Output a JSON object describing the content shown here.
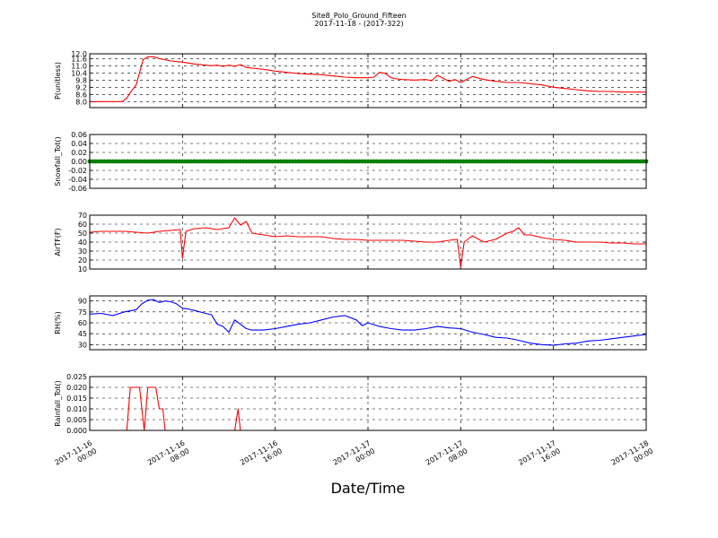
{
  "figure": {
    "title_line1": "Site8_Polo_Ground_Fifteen",
    "title_line2": "2017-11-18 - (2017-322)",
    "xlabel": "Date/Time",
    "x_ticks": [
      {
        "t": 0,
        "line1": "2017-11-16",
        "line2": "00:00"
      },
      {
        "t": 8,
        "line1": "2017-11-16",
        "line2": "08:00"
      },
      {
        "t": 16,
        "line1": "2017-11-16",
        "line2": "16:00"
      },
      {
        "t": 24,
        "line1": "2017-11-17",
        "line2": "00:00"
      },
      {
        "t": 32,
        "line1": "2017-11-17",
        "line2": "08:00"
      },
      {
        "t": 40,
        "line1": "2017-11-17",
        "line2": "16:00"
      },
      {
        "t": 48,
        "line1": "2017-11-18",
        "line2": "00:00"
      }
    ],
    "x_range_hours": [
      0,
      48
    ]
  },
  "chart_data": [
    {
      "type": "line",
      "ylabel": "P(unitless)",
      "ylim": [
        7.5,
        12.0
      ],
      "yticks": [
        "8.0",
        "8.6",
        "9.2",
        "9.8",
        "10.4",
        "11.0",
        "11.6",
        "12.0"
      ],
      "ytick_values": [
        8.0,
        8.6,
        9.2,
        9.8,
        10.4,
        11.0,
        11.6,
        12.0
      ],
      "grid": true,
      "color": "#ff0000",
      "x": [
        0,
        1,
        2,
        2.8,
        3.2,
        3.6,
        4.0,
        4.6,
        5.0,
        5.5,
        6,
        7,
        8,
        9,
        10,
        10.5,
        11,
        11.5,
        12,
        12.5,
        13,
        13.5,
        14,
        15,
        16,
        17,
        18,
        19,
        20,
        21,
        22,
        23,
        24,
        24.5,
        25,
        25.5,
        26,
        26.5,
        27,
        28,
        29,
        29.5,
        30,
        31,
        31.5,
        32,
        32.5,
        33,
        34,
        35,
        36,
        37,
        38,
        39,
        40,
        41,
        42,
        42.5,
        43,
        44,
        45,
        46,
        47,
        48
      ],
      "y": [
        8.0,
        8.0,
        8.0,
        8.0,
        8.3,
        8.9,
        9.4,
        11.5,
        11.75,
        11.75,
        11.6,
        11.4,
        11.3,
        11.15,
        11.05,
        11.0,
        11.05,
        10.95,
        11.05,
        10.95,
        11.1,
        10.85,
        10.8,
        10.7,
        10.55,
        10.45,
        10.35,
        10.3,
        10.25,
        10.15,
        10.05,
        10.0,
        10.0,
        10.05,
        10.45,
        10.35,
        10.0,
        9.9,
        9.85,
        9.8,
        9.85,
        9.75,
        10.2,
        9.7,
        9.85,
        9.6,
        9.85,
        10.1,
        9.85,
        9.7,
        9.6,
        9.6,
        9.5,
        9.4,
        9.2,
        9.1,
        9.0,
        8.95,
        8.9,
        8.85,
        8.85,
        8.8,
        8.8,
        8.8
      ]
    },
    {
      "type": "scatter",
      "ylabel": "Snowfall_Tot()",
      "ylim": [
        -0.06,
        0.06
      ],
      "yticks": [
        "0.06",
        "0.04",
        "0.02",
        "0.00",
        "-0.02",
        "-0.04",
        "-0.06"
      ],
      "ytick_values": [
        0.06,
        0.04,
        0.02,
        0.0,
        -0.02,
        -0.04,
        -0.06
      ],
      "grid": true,
      "color": "#008000",
      "constant_value": 0.0,
      "x_step_hours": 0.25
    },
    {
      "type": "line",
      "ylabel": "AirTF(F)",
      "ylim": [
        10,
        70
      ],
      "yticks": [
        "70",
        "60",
        "50",
        "40",
        "30",
        "20",
        "10"
      ],
      "ytick_values": [
        70,
        60,
        50,
        40,
        30,
        20,
        10
      ],
      "grid": true,
      "color": "#ff0000",
      "x": [
        0,
        1,
        2,
        3,
        4,
        5,
        6,
        7,
        7.8,
        8.0,
        8.3,
        9,
        10,
        11,
        12,
        12.5,
        13,
        13.5,
        14,
        15,
        16,
        17,
        18,
        19,
        20,
        21,
        22,
        23,
        24,
        25,
        26,
        27,
        28,
        29,
        30,
        31,
        31.7,
        32.0,
        32.3,
        33,
        34,
        35,
        36,
        36.5,
        37,
        37.5,
        38,
        39,
        40,
        41,
        42,
        43,
        44,
        45,
        46,
        47,
        48
      ],
      "y": [
        51,
        52,
        52,
        52,
        51,
        50,
        52,
        53,
        54,
        22,
        52,
        55,
        56,
        54,
        56,
        67,
        59,
        63,
        50,
        48,
        46,
        47,
        46,
        46,
        46,
        44,
        43,
        43,
        42,
        42,
        42,
        42,
        41,
        40,
        40,
        42,
        43,
        12,
        40,
        47,
        40,
        43,
        50,
        52,
        56,
        48,
        48,
        45,
        43,
        42,
        40,
        40,
        40,
        39,
        39,
        38,
        38
      ]
    },
    {
      "type": "line",
      "ylabel": "RH(%)",
      "ylim": [
        23,
        97
      ],
      "yticks": [
        "90",
        "75",
        "60",
        "45",
        "30"
      ],
      "ytick_values": [
        90,
        75,
        60,
        45,
        30
      ],
      "grid": true,
      "color": "#0000ff",
      "x": [
        0,
        1,
        2,
        3,
        4,
        4.5,
        5,
        5.5,
        6,
        6.5,
        7,
        7.5,
        8,
        8.5,
        9,
        10,
        10.5,
        11,
        11.5,
        12,
        12.5,
        13,
        13.5,
        14,
        15,
        16,
        17,
        18,
        19,
        20,
        21,
        22,
        23,
        23.5,
        24,
        25,
        26,
        27,
        28,
        29,
        30,
        31,
        32,
        33,
        34,
        35,
        36,
        37,
        38,
        39,
        40,
        41,
        42,
        43,
        44,
        45,
        46,
        47,
        48
      ],
      "y": [
        72,
        73,
        70,
        75,
        78,
        86,
        91,
        92,
        88,
        90,
        89,
        86,
        80,
        79,
        77,
        73,
        71,
        58,
        55,
        47,
        64,
        58,
        52,
        50,
        50,
        52,
        55,
        58,
        60,
        64,
        68,
        70,
        64,
        56,
        60,
        55,
        52,
        50,
        50,
        52,
        55,
        53,
        52,
        47,
        44,
        40,
        39,
        36,
        32,
        30,
        29,
        31,
        32,
        35,
        36,
        38,
        40,
        42,
        44
      ]
    },
    {
      "type": "line",
      "ylabel": "Rainfall_Tot()",
      "ylim": [
        0,
        0.025
      ],
      "yticks": [
        "0.025",
        "0.020",
        "0.015",
        "0.010",
        "0.005",
        "0.000"
      ],
      "ytick_values": [
        0.025,
        0.02,
        0.015,
        0.01,
        0.005,
        0.0
      ],
      "grid": true,
      "color": "#ff0000",
      "x": [
        0,
        3.2,
        3.5,
        4.3,
        4.7,
        5.0,
        5.7,
        6.0,
        6.3,
        6.5,
        12.5,
        12.8,
        13.0,
        48
      ],
      "y": [
        0,
        0,
        0.02,
        0.02,
        0,
        0.02,
        0.02,
        0.01,
        0.01,
        0,
        0,
        0.01,
        0,
        0
      ]
    }
  ]
}
